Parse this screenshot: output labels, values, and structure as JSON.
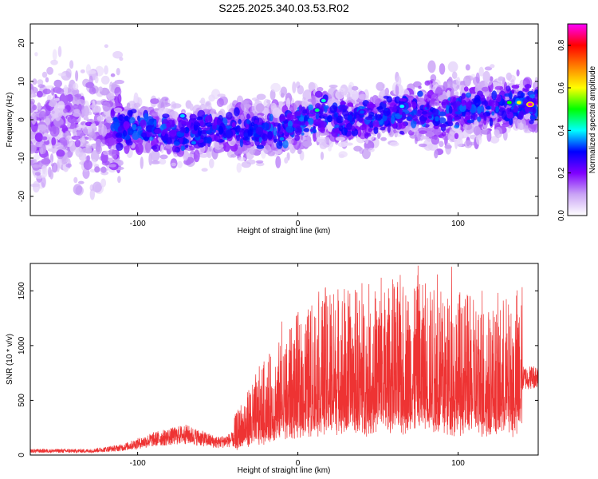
{
  "title": "S225.2025.340.03.53.R02",
  "chart_data": [
    {
      "type": "heatmap",
      "xlabel": "Height of straight line (km)",
      "ylabel": "Frequency (Hz)",
      "xlim": [
        -167,
        150
      ],
      "ylim": [
        -25,
        25
      ],
      "xticks": [
        -100,
        0,
        100
      ],
      "yticks": [
        -20,
        -10,
        0,
        10,
        20
      ],
      "colorbar": {
        "label": "Normalized spectral amplitude",
        "range": [
          0,
          0.9
        ],
        "ticks": [
          0.0,
          0.2,
          0.4,
          0.6,
          0.8
        ],
        "colors": [
          "#ffffff",
          "#c9a3f5",
          "#7f00ff",
          "#0000ff",
          "#00ffff",
          "#00ff00",
          "#ffff00",
          "#ff8000",
          "#ff0000",
          "#ff00ff"
        ]
      },
      "ridge": [
        {
          "x": -110,
          "f": -2
        },
        {
          "x": -90,
          "f": -3
        },
        {
          "x": -70,
          "f": -4
        },
        {
          "x": -50,
          "f": -2
        },
        {
          "x": -30,
          "f": -3
        },
        {
          "x": -10,
          "f": -2
        },
        {
          "x": 10,
          "f": 1
        },
        {
          "x": 30,
          "f": 0
        },
        {
          "x": 50,
          "f": 1
        },
        {
          "x": 70,
          "f": 2
        },
        {
          "x": 90,
          "f": 2
        },
        {
          "x": 110,
          "f": 3
        },
        {
          "x": 130,
          "f": 4
        },
        {
          "x": 148,
          "f": 4
        }
      ],
      "hotspots": [
        {
          "x": 145,
          "f": 4,
          "amp": 0.88
        },
        {
          "x": 138,
          "f": 4.5,
          "amp": 0.6
        },
        {
          "x": 132,
          "f": 4.5,
          "amp": 0.5
        },
        {
          "x": 12,
          "f": 2.5,
          "amp": 0.45
        },
        {
          "x": 16,
          "f": 5,
          "amp": 0.42
        },
        {
          "x": 65,
          "f": 3.5,
          "amp": 0.4
        },
        {
          "x": -72,
          "f": 1,
          "amp": 0.38
        },
        {
          "x": -65,
          "f": -6,
          "amp": 0.35
        },
        {
          "x": -10,
          "f": -5,
          "amp": 0.35
        },
        {
          "x": 40,
          "f": 2,
          "amp": 0.33
        }
      ]
    },
    {
      "type": "line",
      "xlabel": "Height of straight line (km)",
      "ylabel": "SNR (10 * v/v)",
      "xlim": [
        -167,
        150
      ],
      "ylim": [
        0,
        1750
      ],
      "xticks": [
        -100,
        0,
        100
      ],
      "yticks": [
        0,
        500,
        1000,
        1500
      ],
      "color": "#ee3333",
      "envelope": [
        {
          "x": -167,
          "y": 40
        },
        {
          "x": -130,
          "y": 40
        },
        {
          "x": -110,
          "y": 70
        },
        {
          "x": -90,
          "y": 150
        },
        {
          "x": -70,
          "y": 200
        },
        {
          "x": -50,
          "y": 120
        },
        {
          "x": -40,
          "y": 150
        },
        {
          "x": -30,
          "y": 280
        },
        {
          "x": -20,
          "y": 380
        },
        {
          "x": -10,
          "y": 450
        },
        {
          "x": 0,
          "y": 550
        },
        {
          "x": 10,
          "y": 620
        },
        {
          "x": 20,
          "y": 680
        },
        {
          "x": 40,
          "y": 650
        },
        {
          "x": 60,
          "y": 680
        },
        {
          "x": 80,
          "y": 700
        },
        {
          "x": 100,
          "y": 650
        },
        {
          "x": 120,
          "y": 600
        },
        {
          "x": 135,
          "y": 620
        },
        {
          "x": 140,
          "y": 700
        },
        {
          "x": 150,
          "y": 720
        }
      ],
      "peaks": [
        {
          "x": 40,
          "y": 1570
        },
        {
          "x": 52,
          "y": 1620
        },
        {
          "x": 75,
          "y": 1730
        },
        {
          "x": 96,
          "y": 1720
        },
        {
          "x": 87,
          "y": 1650
        },
        {
          "x": 60,
          "y": 1520
        },
        {
          "x": 115,
          "y": 1500
        },
        {
          "x": -10,
          "y": 1220
        },
        {
          "x": -5,
          "y": 1150
        }
      ]
    }
  ]
}
